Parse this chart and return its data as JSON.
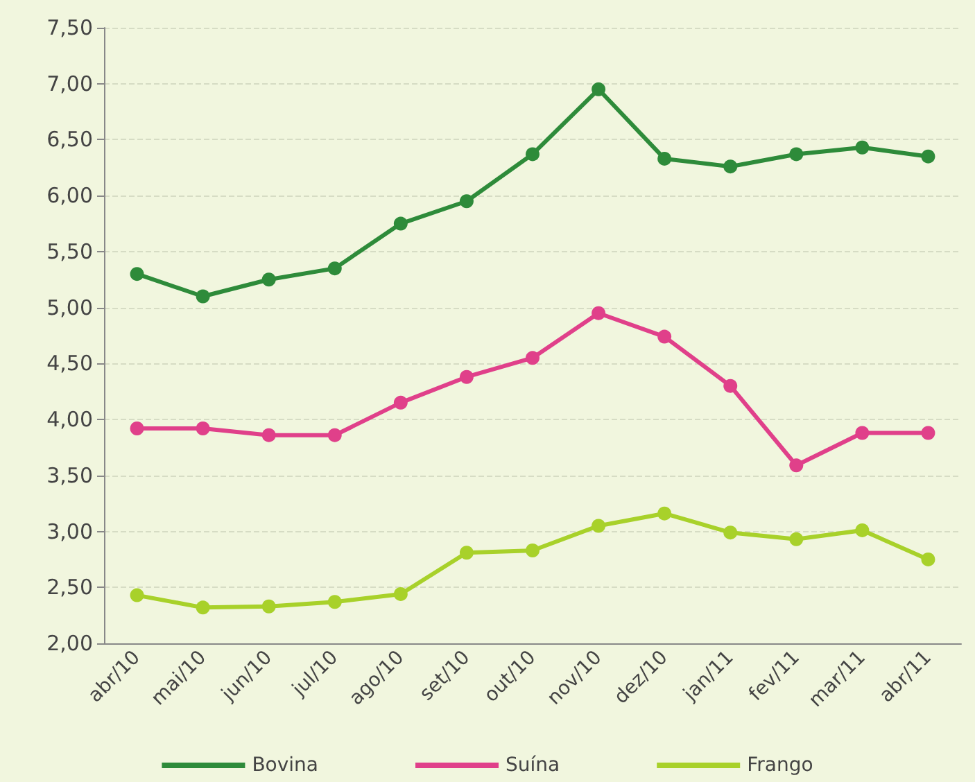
{
  "chart_data": {
    "type": "line",
    "categories": [
      "abr/10",
      "mai/10",
      "jun/10",
      "jul/10",
      "ago/10",
      "set/10",
      "out/10",
      "nov/10",
      "dez/10",
      "jan/11",
      "fev/11",
      "mar/11",
      "abr/11"
    ],
    "series": [
      {
        "name": "Bovina",
        "color": "#2e8b3a",
        "values": [
          5.3,
          5.1,
          5.25,
          5.35,
          5.75,
          5.95,
          6.37,
          6.95,
          6.33,
          6.26,
          6.37,
          6.43,
          6.35
        ]
      },
      {
        "name": "Suína",
        "color": "#e0408a",
        "values": [
          3.92,
          3.92,
          3.86,
          3.86,
          4.15,
          4.38,
          4.55,
          4.95,
          4.74,
          4.3,
          3.59,
          3.88,
          3.88
        ]
      },
      {
        "name": "Frango",
        "color": "#a8d12a",
        "values": [
          2.43,
          2.32,
          2.33,
          2.37,
          2.44,
          2.81,
          2.83,
          3.05,
          3.16,
          2.99,
          2.93,
          3.01,
          2.75
        ]
      }
    ],
    "ylim": [
      2,
      7.5
    ],
    "yticks": [
      {
        "value": 2,
        "label": "2,00"
      },
      {
        "value": 2.5,
        "label": "2,50"
      },
      {
        "value": 3,
        "label": "3,00"
      },
      {
        "value": 3.5,
        "label": "3,50"
      },
      {
        "value": 4,
        "label": "4,00"
      },
      {
        "value": 4.5,
        "label": "4,50"
      },
      {
        "value": 5,
        "label": "5,00"
      },
      {
        "value": 5.5,
        "label": "5,50"
      },
      {
        "value": 6,
        "label": "6,00"
      },
      {
        "value": 6.5,
        "label": "6,50"
      },
      {
        "value": 7,
        "label": "7,00"
      },
      {
        "value": 7.5,
        "label": "7,50"
      }
    ],
    "grid": "y",
    "legend": "bottom",
    "marker": "circle",
    "line_style": "solid"
  }
}
